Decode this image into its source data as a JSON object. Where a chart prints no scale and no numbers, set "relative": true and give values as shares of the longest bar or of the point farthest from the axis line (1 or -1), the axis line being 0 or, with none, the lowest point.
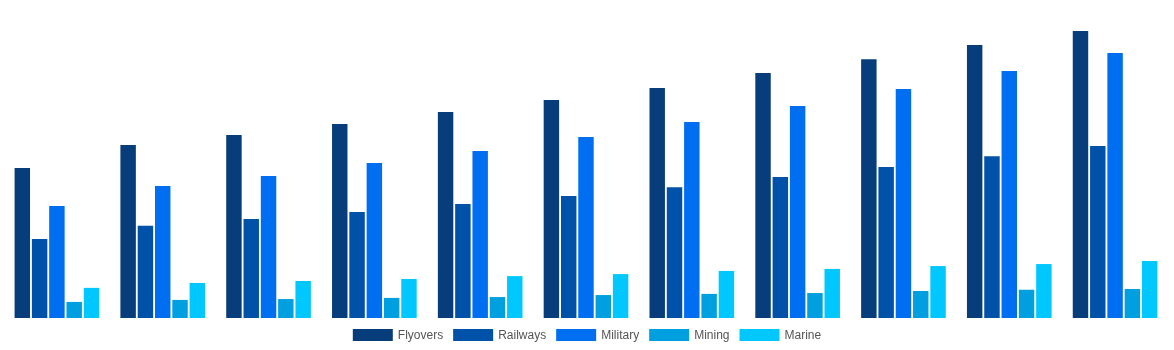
{
  "chart_data": {
    "type": "bar",
    "relative": true,
    "categories": [
      null,
      null,
      null,
      null,
      null,
      null,
      null,
      null,
      null,
      null,
      null
    ],
    "legend": "bottom",
    "series": [
      {
        "name": "Flyovers",
        "color": "#073d7a",
        "values": [
          0.523,
          0.603,
          0.638,
          0.676,
          0.718,
          0.76,
          0.801,
          0.854,
          0.902,
          0.951,
          1
        ]
      },
      {
        "name": "Railways",
        "color": "#0052a8",
        "values": [
          0.275,
          0.321,
          0.345,
          0.369,
          0.397,
          0.425,
          0.456,
          0.491,
          0.526,
          0.564,
          0.599
        ]
      },
      {
        "name": "Military",
        "color": "#006ef0",
        "values": [
          0.39,
          0.46,
          0.495,
          0.54,
          0.582,
          0.631,
          0.683,
          0.739,
          0.798,
          0.861,
          0.923
        ]
      },
      {
        "name": "Mining",
        "color": "#00a0e0",
        "values": [
          0.056,
          0.063,
          0.066,
          0.07,
          0.073,
          0.08,
          0.084,
          0.087,
          0.094,
          0.098,
          0.101
        ]
      },
      {
        "name": "Marine",
        "color": "#00c8ff",
        "values": [
          0.105,
          0.122,
          0.129,
          0.136,
          0.146,
          0.153,
          0.164,
          0.171,
          0.181,
          0.188,
          0.199
        ]
      }
    ]
  }
}
